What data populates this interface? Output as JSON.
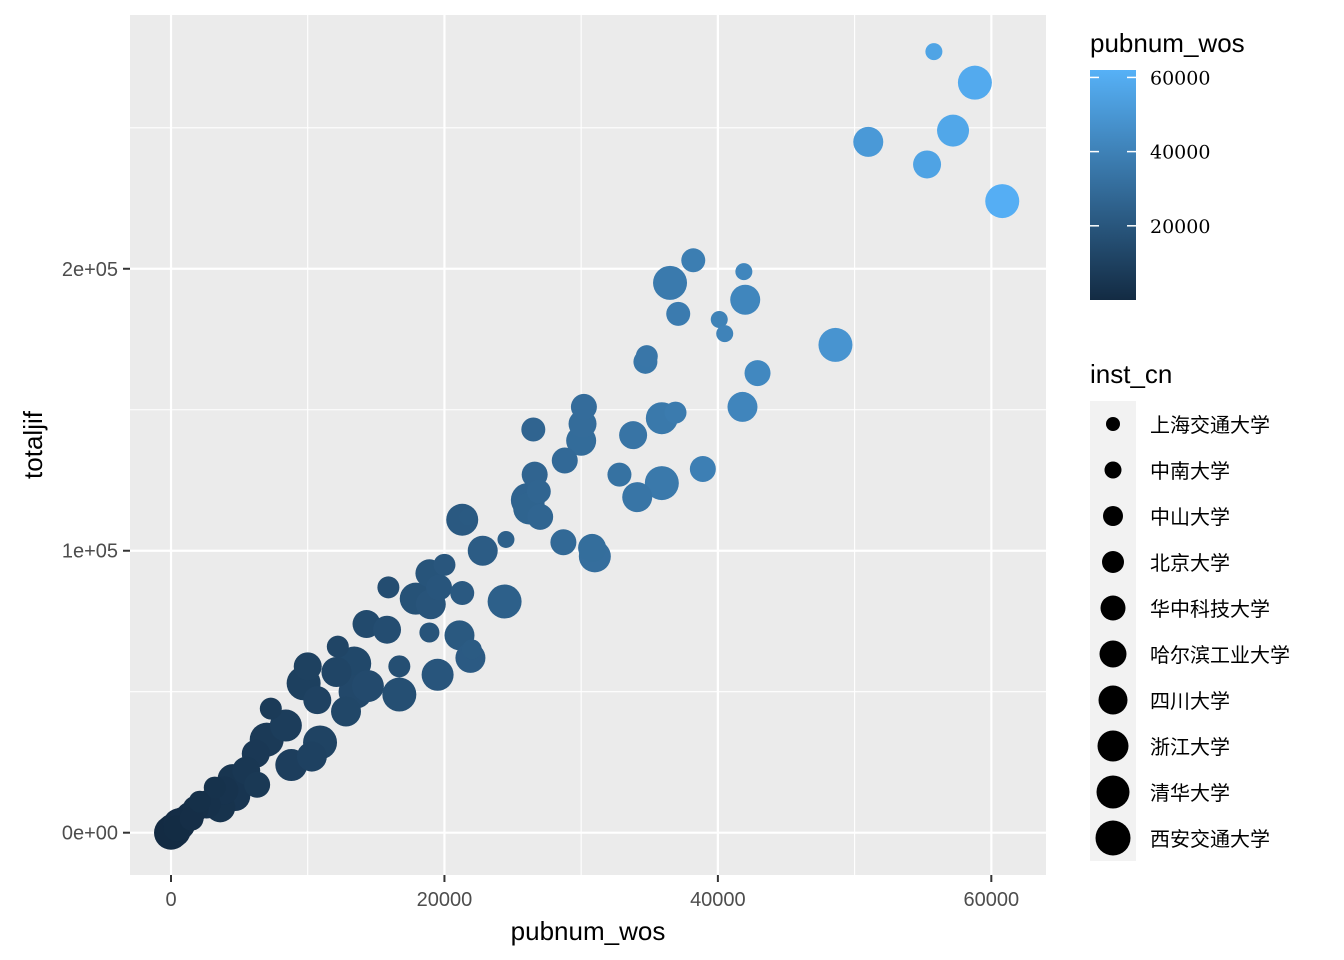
{
  "chart_data": {
    "type": "scatter",
    "xlabel": "pubnum_wos",
    "ylabel": "totaljif",
    "xlim": [
      -3000,
      64000
    ],
    "ylim": [
      -15000,
      290000
    ],
    "x_ticks": [
      0,
      20000,
      40000,
      60000
    ],
    "x_tick_labels": [
      "0",
      "20000",
      "40000",
      "60000"
    ],
    "y_ticks": [
      0,
      100000,
      200000
    ],
    "y_tick_labels": [
      "0e+00",
      "1e+05",
      "2e+05"
    ],
    "grid": true,
    "color_legend": {
      "title": "pubnum_wos",
      "range": [
        0,
        62000
      ],
      "ticks": [
        20000,
        40000,
        60000
      ],
      "tick_labels": [
        "20000",
        "40000",
        "60000"
      ],
      "low_color": "#132B43",
      "high_color": "#56B1F7"
    },
    "size_legend": {
      "title": "inst_cn",
      "entries": [
        "上海交通大学",
        "中南大学",
        "中山大学",
        "北京大学",
        "华中科技大学",
        "哈尔滨工业大学",
        "四川大学",
        "浙江大学",
        "清华大学",
        "西安交通大学"
      ]
    },
    "points": [
      [
        55800,
        277000,
        1
      ],
      [
        58800,
        266000,
        9
      ],
      [
        57200,
        249000,
        8
      ],
      [
        51000,
        245000,
        7
      ],
      [
        55300,
        237000,
        6
      ],
      [
        60800,
        224000,
        9
      ],
      [
        38200,
        203000,
        4
      ],
      [
        41900,
        199000,
        1
      ],
      [
        36500,
        195000,
        9
      ],
      [
        42000,
        189000,
        7
      ],
      [
        37100,
        184000,
        4
      ],
      [
        40100,
        182000,
        1
      ],
      [
        40500,
        177000,
        1
      ],
      [
        48600,
        173000,
        9
      ],
      [
        34800,
        169000,
        3
      ],
      [
        34700,
        167000,
        4
      ],
      [
        42900,
        163000,
        5
      ],
      [
        30200,
        151000,
        5
      ],
      [
        41800,
        151000,
        7
      ],
      [
        35900,
        147000,
        8
      ],
      [
        36900,
        149000,
        3
      ],
      [
        30100,
        145000,
        6
      ],
      [
        26500,
        143000,
        4
      ],
      [
        33800,
        141000,
        6
      ],
      [
        30000,
        139000,
        7
      ],
      [
        28800,
        132000,
        5
      ],
      [
        38900,
        129000,
        5
      ],
      [
        26600,
        127000,
        5
      ],
      [
        32800,
        127000,
        4
      ],
      [
        35900,
        124000,
        9
      ],
      [
        34100,
        119000,
        7
      ],
      [
        26100,
        118000,
        9
      ],
      [
        26900,
        121000,
        4
      ],
      [
        26200,
        115000,
        8
      ],
      [
        27000,
        112000,
        5
      ],
      [
        21700,
        112000,
        1
      ],
      [
        21300,
        111000,
        8
      ],
      [
        24500,
        104000,
        1
      ],
      [
        28700,
        103000,
        5
      ],
      [
        22800,
        100000,
        7
      ],
      [
        30800,
        101000,
        6
      ],
      [
        31000,
        98000,
        8
      ],
      [
        20000,
        95000,
        3
      ],
      [
        18900,
        92000,
        6
      ],
      [
        19600,
        87000,
        5
      ],
      [
        15900,
        87000,
        3
      ],
      [
        21300,
        85000,
        4
      ],
      [
        17900,
        83000,
        8
      ],
      [
        19000,
        81000,
        7
      ],
      [
        24400,
        82000,
        9
      ],
      [
        14300,
        74000,
        6
      ],
      [
        15800,
        72000,
        6
      ],
      [
        21100,
        70000,
        7
      ],
      [
        18900,
        71000,
        2
      ],
      [
        22000,
        65000,
        2
      ],
      [
        12200,
        66000,
        3
      ],
      [
        10000,
        59000,
        6
      ],
      [
        21900,
        62000,
        7
      ],
      [
        13400,
        60000,
        9
      ],
      [
        16700,
        59000,
        3
      ],
      [
        19500,
        56000,
        8
      ],
      [
        12100,
        57000,
        7
      ],
      [
        9700,
        53000,
        9
      ],
      [
        14400,
        52000,
        8
      ],
      [
        13500,
        50000,
        9
      ],
      [
        16700,
        49000,
        9
      ],
      [
        10700,
        47000,
        6
      ],
      [
        7300,
        44000,
        3
      ],
      [
        12800,
        43000,
        7
      ],
      [
        8400,
        38000,
        8
      ],
      [
        10900,
        32000,
        9
      ],
      [
        7000,
        33000,
        9
      ],
      [
        10300,
        27000,
        7
      ],
      [
        6200,
        28000,
        6
      ],
      [
        8800,
        24000,
        8
      ],
      [
        5500,
        22000,
        6
      ],
      [
        4500,
        19000,
        7
      ],
      [
        6300,
        17000,
        5
      ],
      [
        3900,
        15000,
        6
      ],
      [
        4700,
        13000,
        7
      ],
      [
        3200,
        16000,
        3
      ],
      [
        3600,
        9000,
        7
      ],
      [
        2600,
        10000,
        6
      ],
      [
        1800,
        8500,
        5
      ],
      [
        2100,
        11000,
        3
      ],
      [
        1400,
        6000,
        6
      ],
      [
        1500,
        5000,
        4
      ],
      [
        900,
        4200,
        6
      ],
      [
        600,
        3000,
        8
      ],
      [
        400,
        1500,
        5
      ],
      [
        200,
        800,
        9
      ],
      [
        0,
        0,
        9
      ]
    ]
  }
}
